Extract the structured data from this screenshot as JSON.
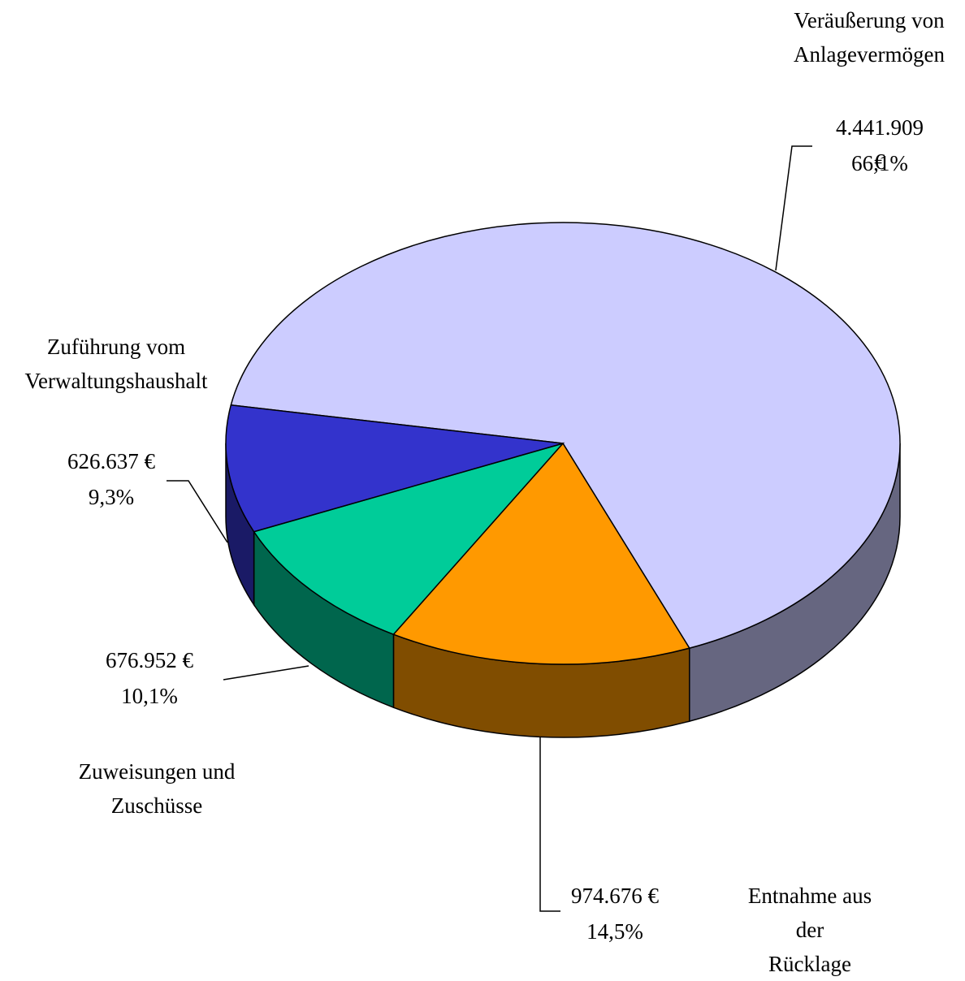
{
  "chart_data": {
    "type": "pie3d",
    "categories": [
      "Veräußerung von\nAnlagevermögen",
      "Entnahme aus der\nRücklage",
      "Zuweisungen und\nZuschüsse",
      "Zuführung vom\nVerwaltungshaushalt"
    ],
    "values": [
      4441909,
      974676,
      676952,
      626637
    ],
    "value_labels": [
      "4.441.909 €",
      "974.676 €",
      "676.952 €",
      "626.637 €"
    ],
    "percent_values": [
      66.1,
      14.5,
      10.1,
      9.3
    ],
    "percent_labels": [
      "66,1%",
      "14,5%",
      "10,1%",
      "9,3%"
    ],
    "colors": [
      "#ccccff",
      "#ff9900",
      "#00cc99",
      "#3333cc"
    ]
  }
}
